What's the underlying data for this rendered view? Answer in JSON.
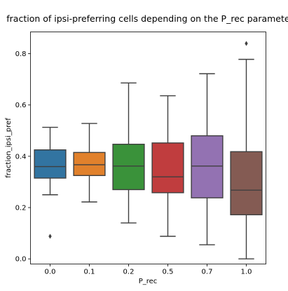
{
  "chart_data": {
    "type": "box",
    "title": "fraction of ipsi-preferring cells depending on the P_rec parameter",
    "xlabel": "P_rec",
    "ylabel": "fraction_ipsi_pref",
    "categories": [
      "0.0",
      "0.1",
      "0.2",
      "0.5",
      "0.7",
      "1.0"
    ],
    "ylim": [
      -0.02,
      0.885
    ],
    "yticks": [
      0.0,
      0.2,
      0.4,
      0.6,
      0.8
    ],
    "ytick_labels": [
      "0.0",
      "0.2",
      "0.4",
      "0.6",
      "0.8"
    ],
    "grid": false,
    "boxes": [
      {
        "category": "0.0",
        "whisker_low": 0.25,
        "q1": 0.315,
        "median": 0.36,
        "q3": 0.425,
        "whisker_high": 0.513,
        "outliers": [
          0.088
        ],
        "color": "#3274a1"
      },
      {
        "category": "0.1",
        "whisker_low": 0.222,
        "q1": 0.325,
        "median": 0.367,
        "q3": 0.415,
        "whisker_high": 0.528,
        "outliers": [],
        "color": "#e1812c"
      },
      {
        "category": "0.2",
        "whisker_low": 0.14,
        "q1": 0.27,
        "median": 0.362,
        "q3": 0.447,
        "whisker_high": 0.686,
        "outliers": [],
        "color": "#3a923a"
      },
      {
        "category": "0.5",
        "whisker_low": 0.088,
        "q1": 0.258,
        "median": 0.32,
        "q3": 0.452,
        "whisker_high": 0.636,
        "outliers": [],
        "color": "#c03d3e"
      },
      {
        "category": "0.7",
        "whisker_low": 0.055,
        "q1": 0.238,
        "median": 0.362,
        "q3": 0.48,
        "whisker_high": 0.722,
        "outliers": [],
        "color": "#9372b2"
      },
      {
        "category": "1.0",
        "whisker_low": 0.0,
        "q1": 0.172,
        "median": 0.268,
        "q3": 0.418,
        "whisker_high": 0.778,
        "outliers": [
          0.84
        ],
        "color": "#845b53"
      }
    ]
  }
}
